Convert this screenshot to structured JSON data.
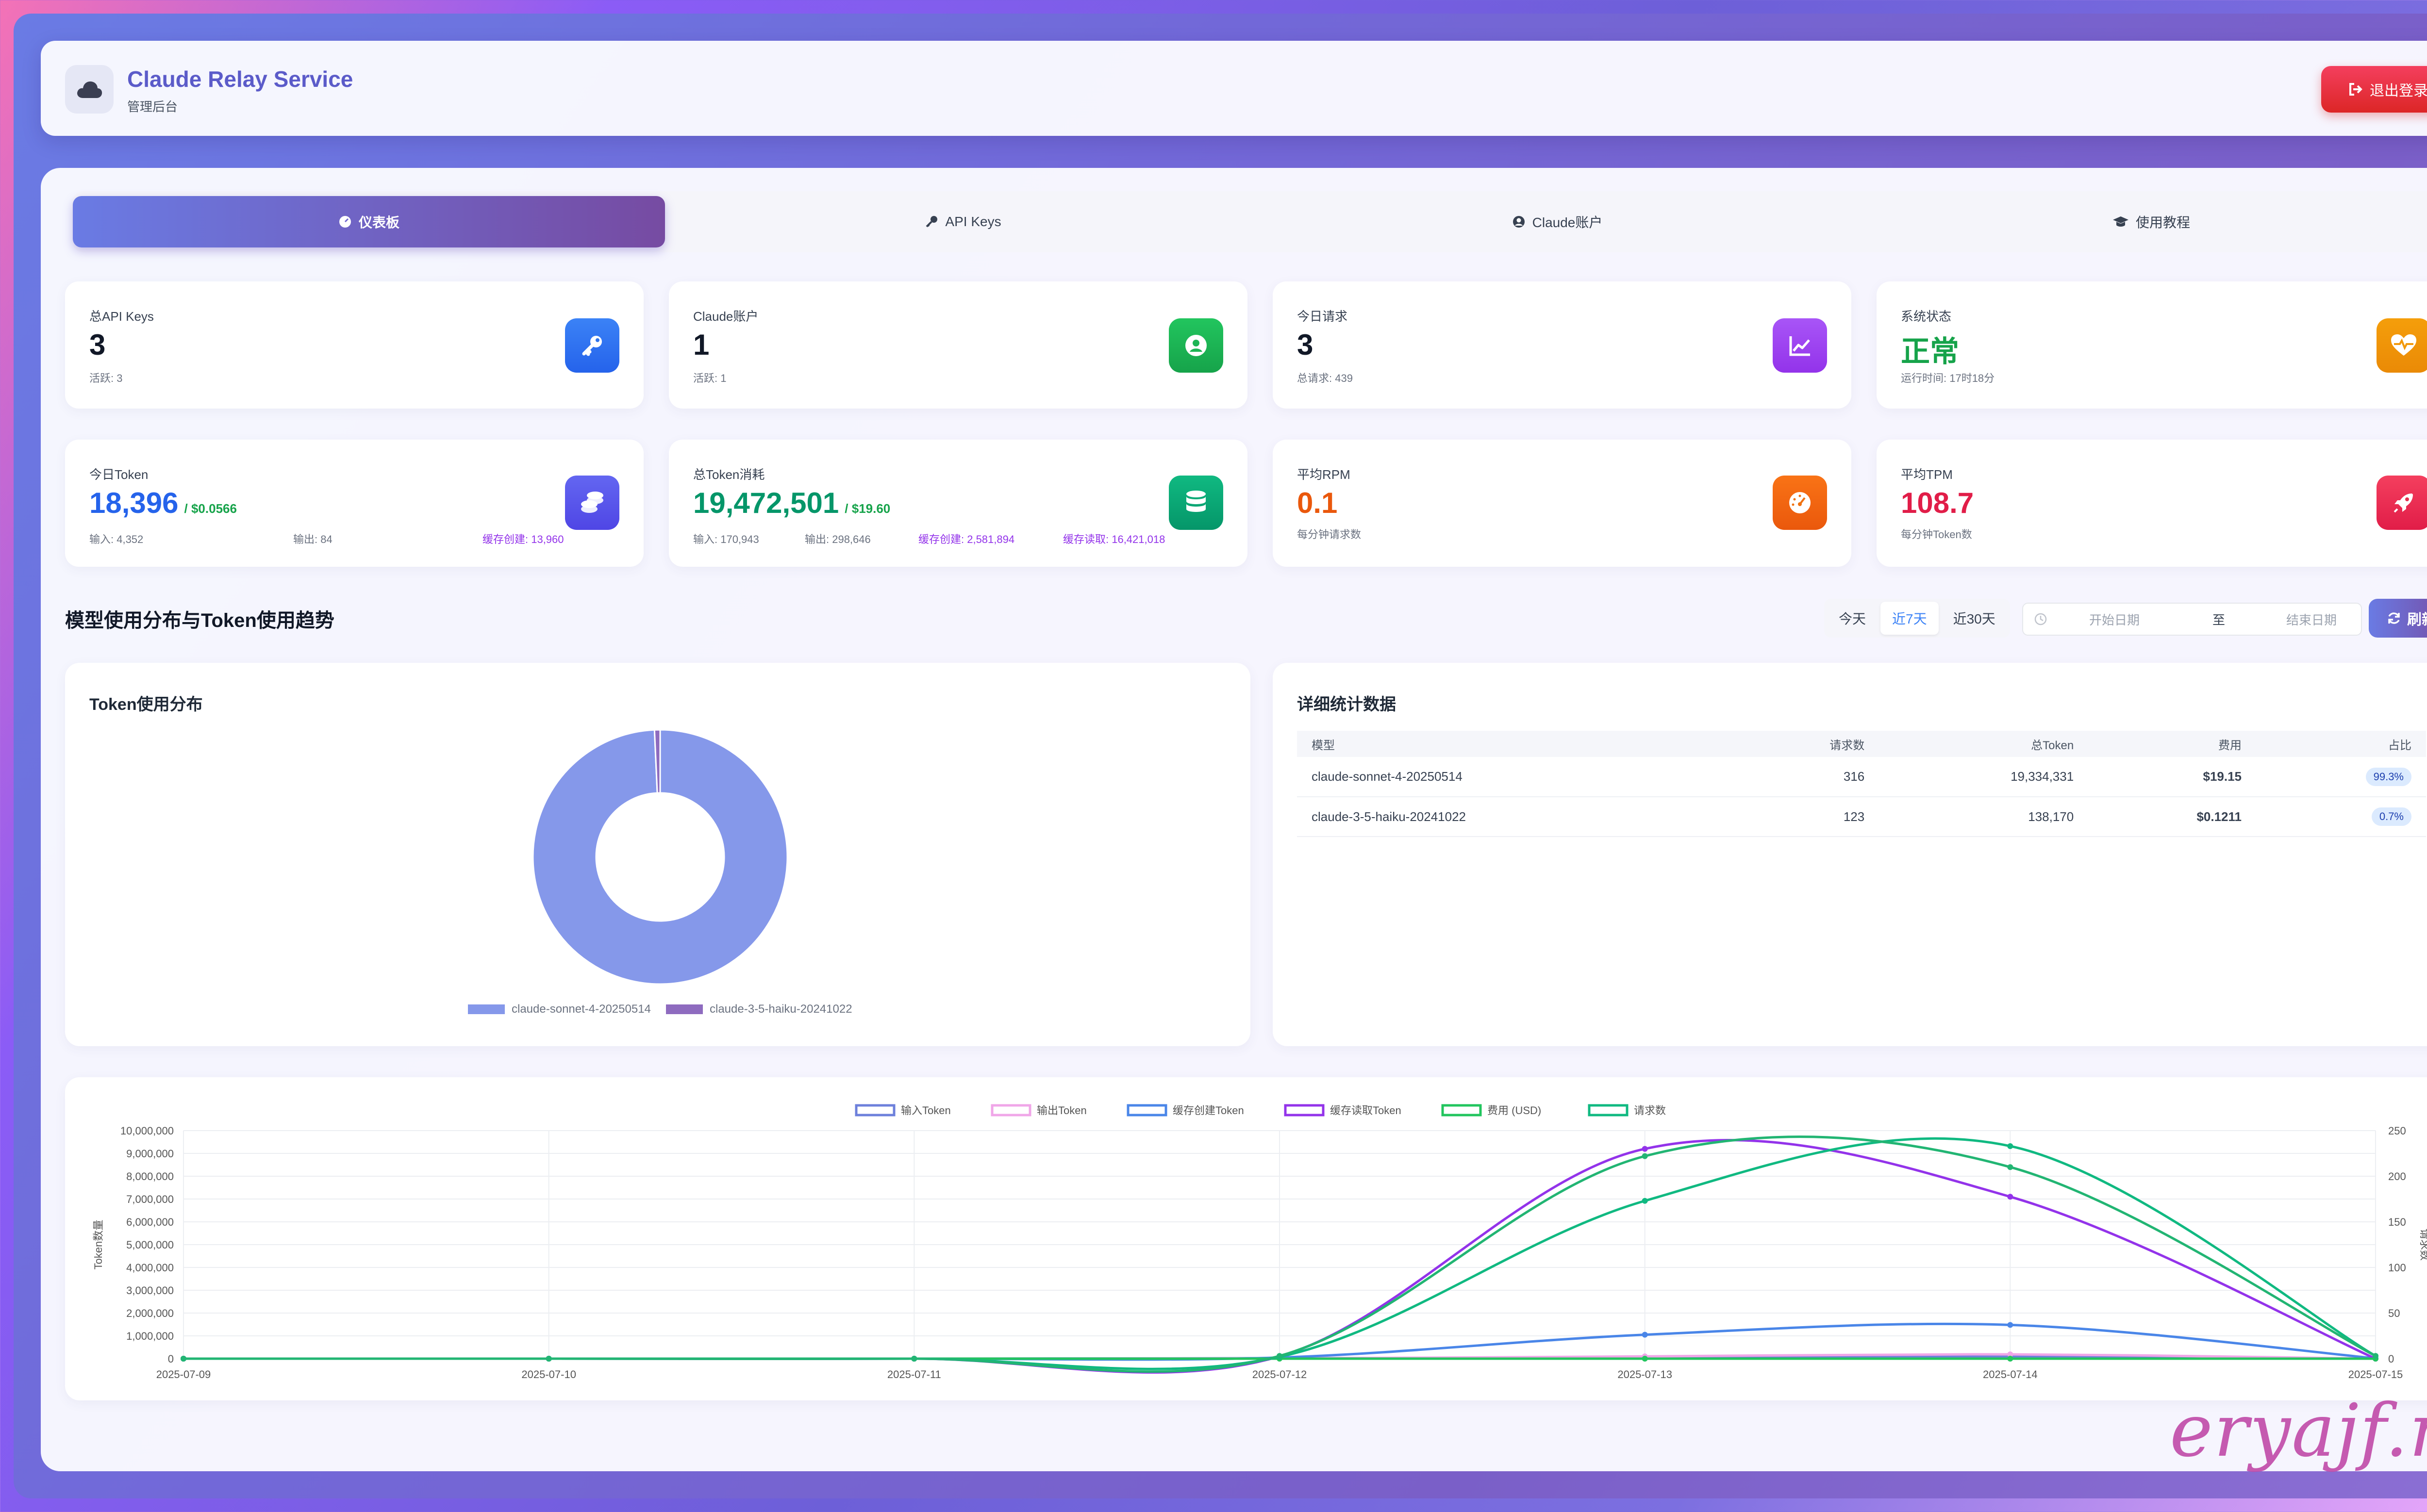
{
  "header": {
    "title": "Claude Relay Service",
    "subtitle": "管理后台",
    "logout": "退出登录"
  },
  "tabs": [
    {
      "label": "仪表板",
      "icon": "gauge-icon",
      "active": true
    },
    {
      "label": "API Keys",
      "icon": "key-icon",
      "active": false
    },
    {
      "label": "Claude账户",
      "icon": "user-circle-icon",
      "active": false
    },
    {
      "label": "使用教程",
      "icon": "graduation-cap-icon",
      "active": false
    }
  ],
  "stats_row1": [
    {
      "label": "总API Keys",
      "value": "3",
      "sub": "活跃: 3",
      "icon": "key-icon",
      "color": "#3b82f6"
    },
    {
      "label": "Claude账户",
      "value": "1",
      "sub": "活跃: 1",
      "icon": "user-circle-icon",
      "color": "#22c55e"
    },
    {
      "label": "今日请求",
      "value": "3",
      "sub": "总请求: 439",
      "icon": "chart-line-icon",
      "color": "#a855f7"
    },
    {
      "label": "系统状态",
      "value": "正常",
      "sub": "运行时间: 17时18分",
      "icon": "heartbeat-icon",
      "color": "#f59e0b"
    }
  ],
  "today_token": {
    "label": "今日Token",
    "value": "18,396",
    "cost": "/ $0.0566",
    "input": "输入: 4,352",
    "output": "输出: 84",
    "cache_create": "缓存创建: 13,960",
    "icon": "coins-icon",
    "color": "#6366f1"
  },
  "total_token": {
    "label": "总Token消耗",
    "value": "19,472,501",
    "cost": "/ $19.60",
    "input": "输入: 170,943",
    "output": "输出: 298,646",
    "cache_create": "缓存创建: 2,581,894",
    "cache_read": "缓存读取: 16,421,018",
    "icon": "database-icon",
    "color": "#10b981"
  },
  "rpm": {
    "label": "平均RPM",
    "value": "0.1",
    "sub": "每分钟请求数",
    "icon": "speedometer-icon",
    "color": "#f97316"
  },
  "tpm": {
    "label": "平均TPM",
    "value": "108.7",
    "sub": "每分钟Token数",
    "icon": "rocket-icon",
    "color": "#e11d48"
  },
  "section": {
    "title": "模型使用分布与Token使用趋势",
    "ranges": [
      "今天",
      "近7天",
      "近30天"
    ],
    "active_range": "近7天",
    "start_placeholder": "开始日期",
    "to": "至",
    "end_placeholder": "结束日期",
    "refresh": "刷新"
  },
  "pie": {
    "title": "Token使用分布",
    "legend": [
      "claude-sonnet-4-20250514",
      "claude-3-5-haiku-20241022"
    ],
    "colors": [
      "#8598ea",
      "#8e6bbf"
    ],
    "values": [
      19334331,
      138170
    ]
  },
  "detail": {
    "title": "详细统计数据",
    "headers": [
      "模型",
      "请求数",
      "总Token",
      "费用",
      "占比"
    ],
    "rows": [
      [
        "claude-sonnet-4-20250514",
        "316",
        "19,334,331",
        "$19.15",
        "99.3%"
      ],
      [
        "claude-3-5-haiku-20241022",
        "123",
        "138,170",
        "$0.1211",
        "0.7%"
      ]
    ]
  },
  "chart_data": {
    "type": "line",
    "x": [
      "2025-07-09",
      "2025-07-10",
      "2025-07-11",
      "2025-07-12",
      "2025-07-13",
      "2025-07-14",
      "2025-07-15"
    ],
    "ylabel": "Token数量",
    "y2label": "请求数",
    "ylim": [
      0,
      10000000
    ],
    "y2lim": [
      0,
      250
    ],
    "yticks": [
      "10,000,000",
      "9,000,000",
      "8,000,000",
      "7,000,000",
      "6,000,000",
      "5,000,000",
      "4,000,000",
      "3,000,000",
      "2,000,000",
      "1,000,000",
      "0"
    ],
    "y2ticks": [
      "250",
      "200",
      "150",
      "100",
      "50",
      "0"
    ],
    "grid": true,
    "legend_position": "top",
    "series": [
      {
        "name": "输入Token",
        "axis": "left",
        "color": "#6d80db",
        "values": [
          0,
          0,
          0,
          20000,
          60000,
          90000,
          4352
        ]
      },
      {
        "name": "输出Token",
        "axis": "left",
        "color": "#f0a6e8",
        "values": [
          0,
          0,
          0,
          10000,
          100000,
          190000,
          84
        ]
      },
      {
        "name": "缓存创建Token",
        "axis": "left",
        "color": "#4a86e8",
        "values": [
          0,
          0,
          0,
          50000,
          1050000,
          1480000,
          13960
        ]
      },
      {
        "name": "缓存读取Token",
        "axis": "left",
        "color": "#9333ea",
        "values": [
          0,
          0,
          0,
          100000,
          9200000,
          7100000,
          0
        ]
      },
      {
        "name": "费用 (USD)",
        "axis": "left",
        "color": "#22c55e",
        "values": [
          0,
          0,
          0,
          0,
          0,
          0,
          0
        ]
      },
      {
        "name": "请求数",
        "axis": "right",
        "color": "#10b981",
        "values": [
          0,
          0,
          0,
          2,
          173,
          233,
          3
        ]
      },
      {
        "name": "请求数",
        "axis": "right",
        "color": "#22b573",
        "values": [
          0,
          0,
          0,
          3,
          222,
          210,
          3
        ],
        "legend": false
      }
    ]
  },
  "watermark": "eryajf.net"
}
